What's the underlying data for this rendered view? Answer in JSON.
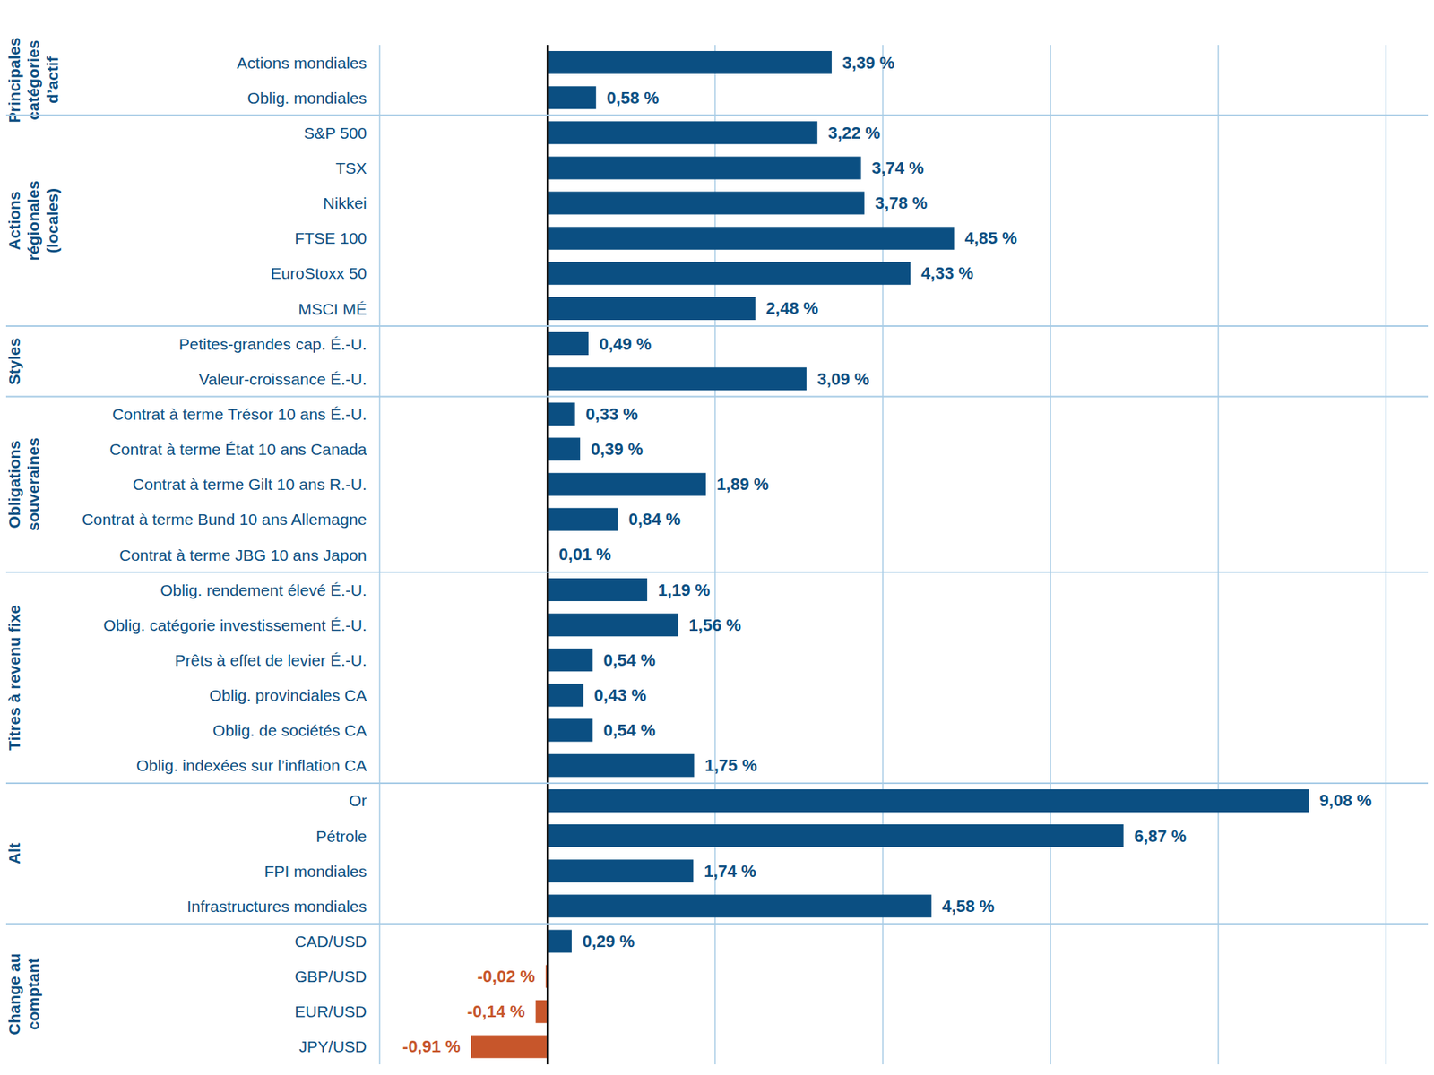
{
  "chart_data": {
    "type": "bar",
    "orientation": "horizontal",
    "grid": true,
    "tick_labels": false,
    "data_labels": true,
    "xlim": [
      -2,
      10
    ],
    "xticks": [
      -2,
      0,
      2,
      4,
      6,
      8,
      10
    ],
    "groups": [
      {
        "label": [
          "Principales",
          "catégories",
          "d’actif"
        ],
        "categories": [
          "Actions mondiales",
          "Oblig. mondiales"
        ],
        "values": [
          3.39,
          0.58
        ],
        "value_labels": [
          "3,39 %",
          "0,58 %"
        ],
        "colors": [
          "#0b4f82",
          "#0b4f82"
        ]
      },
      {
        "label": [
          "Actions",
          "régionales",
          "(locales)"
        ],
        "categories": [
          "S&P 500",
          "TSX",
          "Nikkei",
          "FTSE 100",
          "EuroStoxx 50",
          "MSCI MÉ"
        ],
        "values": [
          3.22,
          3.74,
          3.78,
          4.85,
          4.33,
          2.48
        ],
        "value_labels": [
          "3,22 %",
          "3,74 %",
          "3,78 %",
          "4,85 %",
          "4,33 %",
          "2,48 %"
        ],
        "colors": [
          "#0b4f82",
          "#0b4f82",
          "#0b4f82",
          "#0b4f82",
          "#0b4f82",
          "#0b4f82"
        ]
      },
      {
        "label": [
          "Styles"
        ],
        "categories": [
          "Petites-grandes cap. É.-U.",
          "Valeur-croissance É.-U."
        ],
        "values": [
          0.49,
          3.09
        ],
        "value_labels": [
          "0,49 %",
          "3,09 %"
        ],
        "colors": [
          "#0b4f82",
          "#0b4f82"
        ]
      },
      {
        "label": [
          "Obligations",
          "souveraines"
        ],
        "categories": [
          "Contrat à terme Trésor 10 ans É.-U.",
          "Contrat à terme État 10 ans Canada",
          "Contrat à terme Gilt 10 ans R.-U.",
          "Contrat à terme Bund 10 ans Allemagne",
          "Contrat à terme JBG 10 ans Japon"
        ],
        "values": [
          0.33,
          0.39,
          1.89,
          0.84,
          0.01
        ],
        "value_labels": [
          "0,33 %",
          "0,39 %",
          "1,89 %",
          "0,84 %",
          "0,01 %"
        ],
        "colors": [
          "#0b4f82",
          "#0b4f82",
          "#0b4f82",
          "#0b4f82",
          "#0b4f82"
        ]
      },
      {
        "label": [
          "Titres à revenu fixe"
        ],
        "categories": [
          "Oblig. rendement élevé É.-U.",
          "Oblig. catégorie investissement É.-U.",
          "Prêts à effet de levier É.-U.",
          "Oblig. provinciales CA",
          "Oblig. de sociétés CA",
          "Oblig. indexées sur l’inflation CA"
        ],
        "values": [
          1.19,
          1.56,
          0.54,
          0.43,
          0.54,
          1.75
        ],
        "value_labels": [
          "1,19 %",
          "1,56 %",
          "0,54 %",
          "0,43 %",
          "0,54 %",
          "1,75 %"
        ],
        "colors": [
          "#0b4f82",
          "#0b4f82",
          "#0b4f82",
          "#0b4f82",
          "#0b4f82",
          "#0b4f82"
        ]
      },
      {
        "label": [
          "Alt"
        ],
        "categories": [
          "Or",
          "Pétrole",
          "FPI mondiales",
          "Infrastructures mondiales"
        ],
        "values": [
          9.08,
          6.87,
          1.74,
          4.58
        ],
        "value_labels": [
          "9,08 %",
          "6,87 %",
          "1,74 %",
          "4,58 %"
        ],
        "colors": [
          "#0b4f82",
          "#0b4f82",
          "#0b4f82",
          "#0b4f82"
        ]
      },
      {
        "label": [
          "Change au",
          "comptant"
        ],
        "categories": [
          "CAD/USD",
          "GBP/USD",
          "EUR/USD",
          "JPY/USD"
        ],
        "values": [
          0.29,
          -0.02,
          -0.14,
          -0.91
        ],
        "value_labels": [
          "0,29 %",
          "-0,02 %",
          "-0,14 %",
          "-0,91 %"
        ],
        "colors": [
          "#0b4f82",
          "#c7562b",
          "#c7562b",
          "#c7562b"
        ]
      }
    ]
  }
}
